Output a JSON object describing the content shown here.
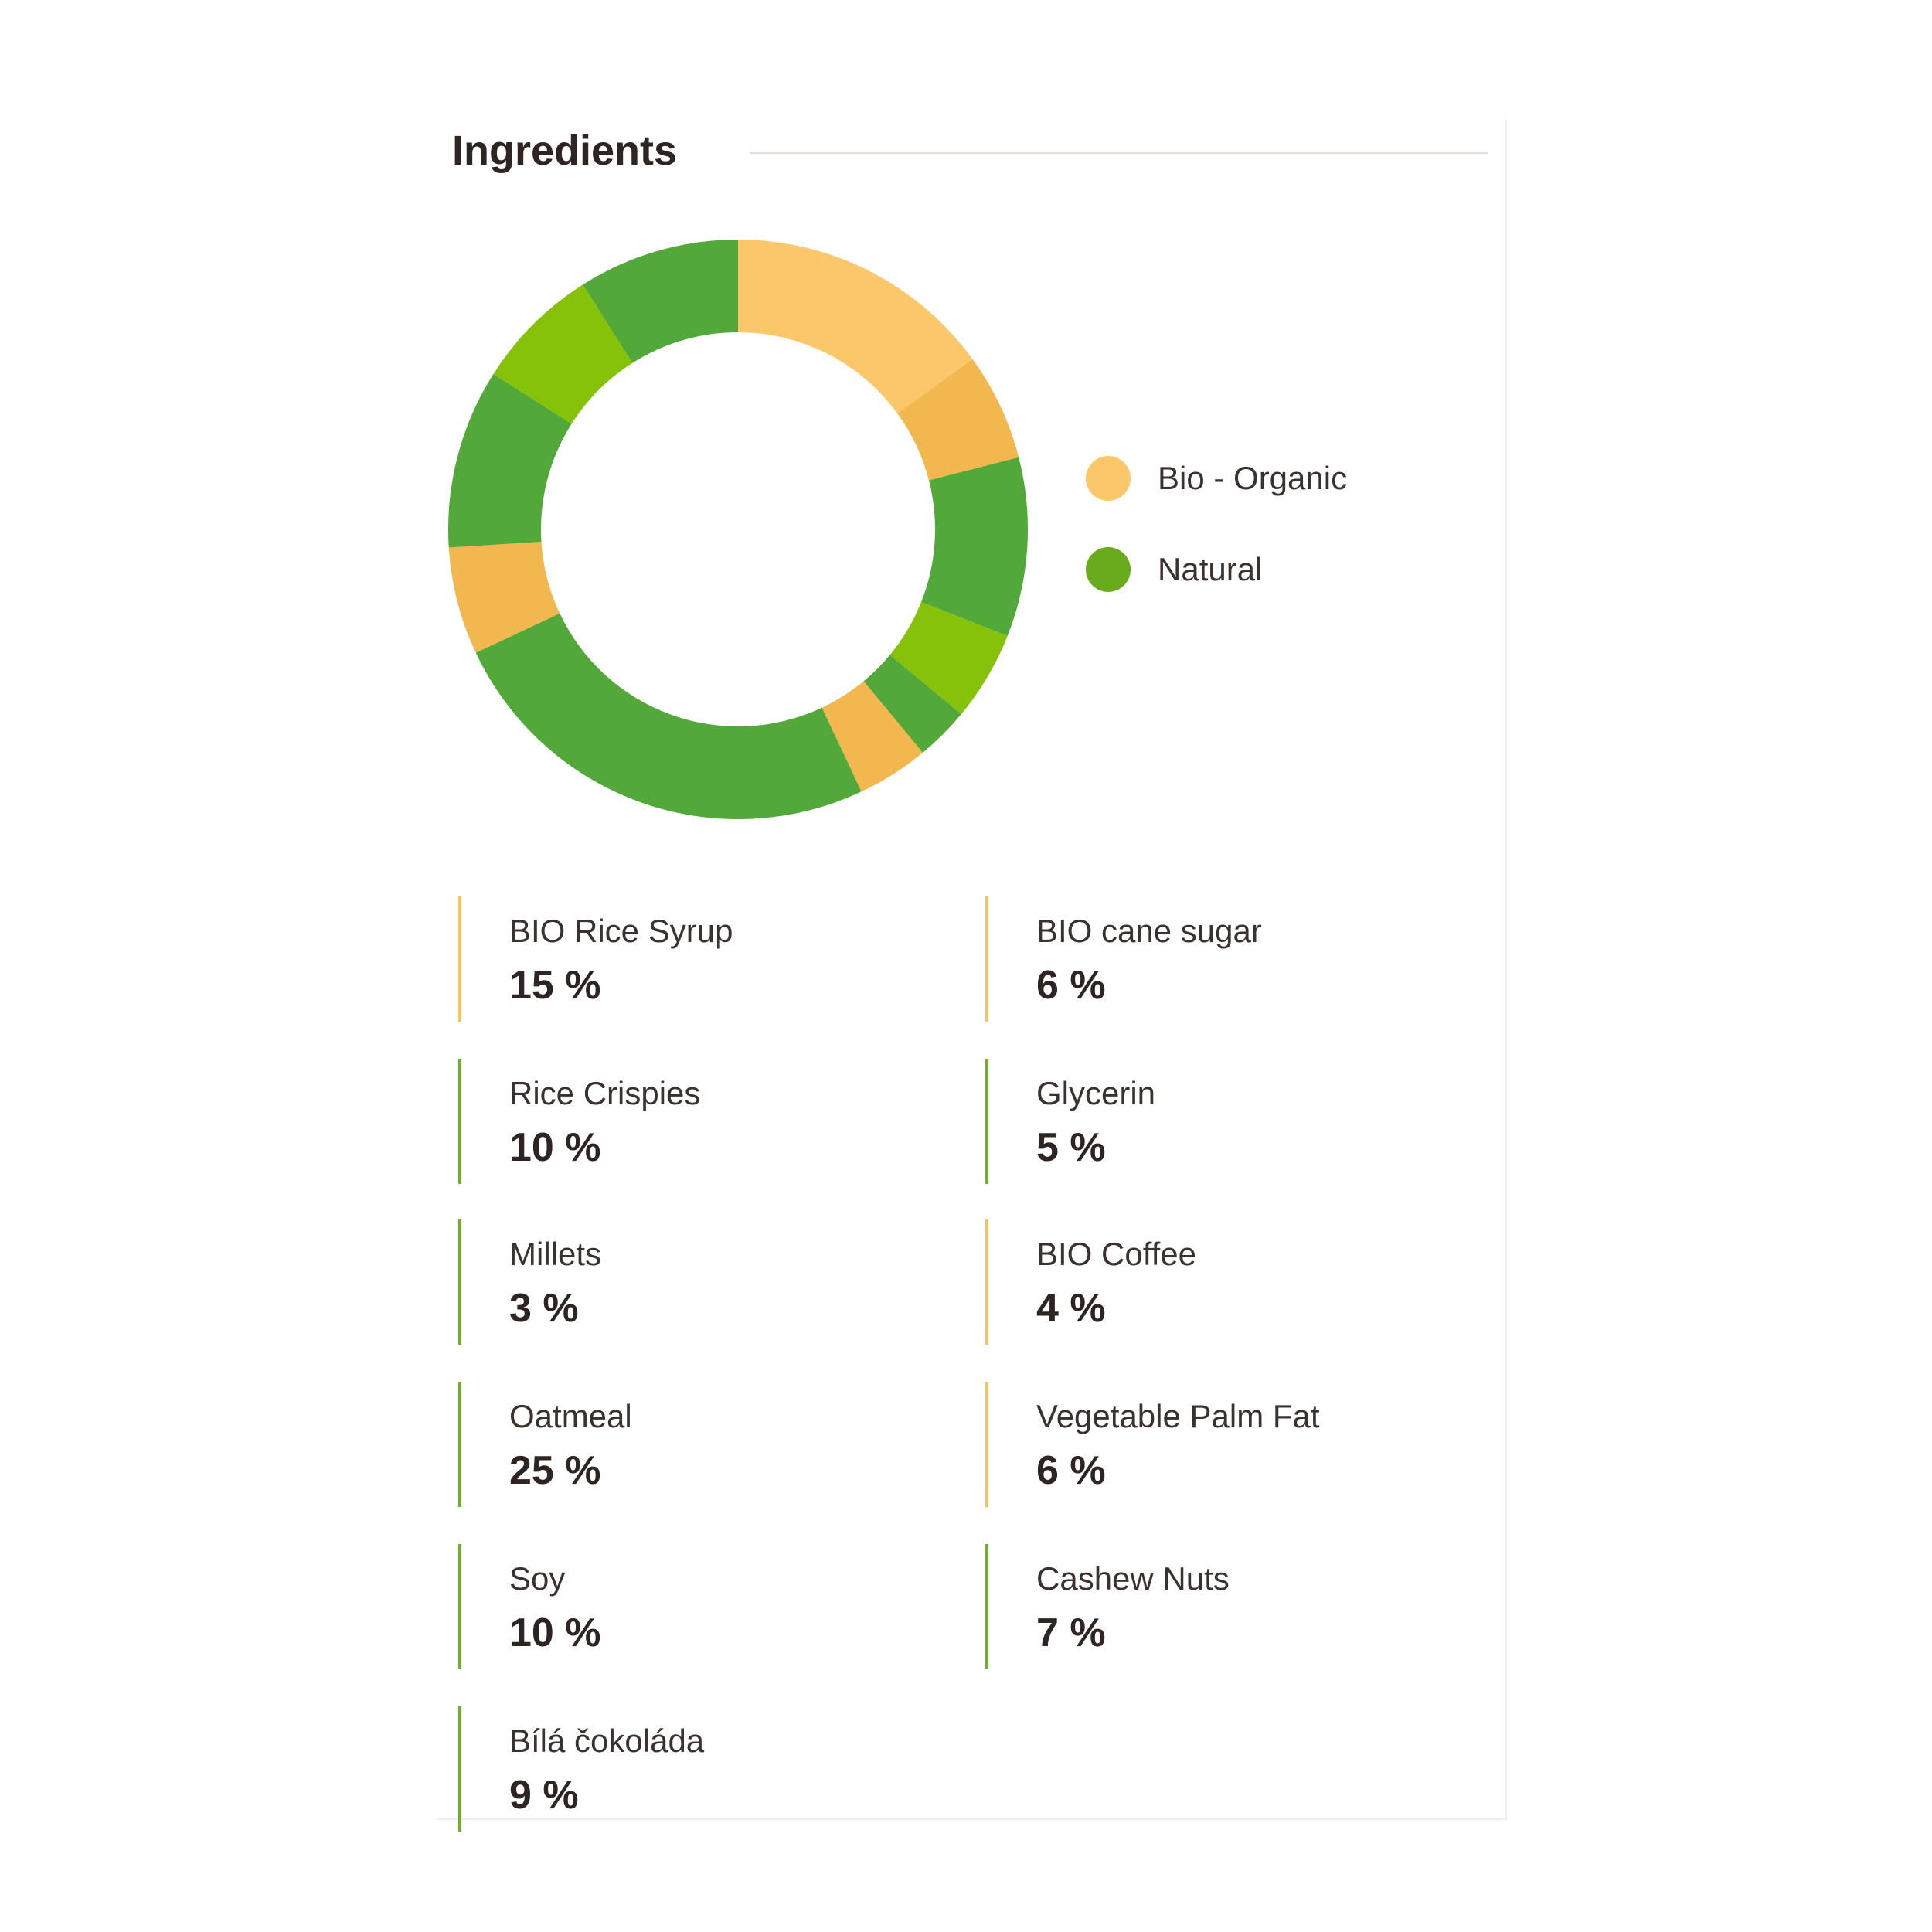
{
  "title": "Ingredients",
  "colors": {
    "organic": "#fcc76a",
    "organic_dark": "#f2b74e",
    "natural": "#52a93a",
    "natural_light": "#86c20a",
    "bar_organic": "#f5c45a",
    "bar_natural": "#6fb02a"
  },
  "legend": [
    {
      "label": "Bio - Organic",
      "color": "#fcc76a"
    },
    {
      "label": "Natural",
      "color": "#6aab1e"
    }
  ],
  "ingredients": [
    {
      "name": "BIO Rice Syrup",
      "percent": "15 %",
      "category": "organic"
    },
    {
      "name": "BIO cane sugar",
      "percent": "6 %",
      "category": "organic"
    },
    {
      "name": "Rice Crispies",
      "percent": "10 %",
      "category": "natural"
    },
    {
      "name": "Glycerin",
      "percent": "5 %",
      "category": "natural"
    },
    {
      "name": "Millets",
      "percent": "3 %",
      "category": "natural"
    },
    {
      "name": "BIO Coffee",
      "percent": "4 %",
      "category": "organic"
    },
    {
      "name": "Oatmeal",
      "percent": "25 %",
      "category": "natural"
    },
    {
      "name": "Vegetable Palm Fat",
      "percent": "6 %",
      "category": "organic"
    },
    {
      "name": "Soy",
      "percent": "10 %",
      "category": "natural"
    },
    {
      "name": "Cashew Nuts",
      "percent": "7 %",
      "category": "natural"
    },
    {
      "name": "Bílá čokoláda",
      "percent": "9 %",
      "category": "natural"
    }
  ],
  "chart_data": {
    "type": "pie",
    "variant": "donut",
    "title": "Ingredients",
    "start": "top, clockwise",
    "legend_placement": "right",
    "slices": [
      {
        "label": "BIO Rice Syrup",
        "value": 15,
        "color": "#fcc76a"
      },
      {
        "label": "BIO cane sugar",
        "value": 6,
        "color": "#f2b74e"
      },
      {
        "label": "Rice Crispies",
        "value": 10,
        "color": "#52a93a"
      },
      {
        "label": "Glycerin",
        "value": 5,
        "color": "#86c20a"
      },
      {
        "label": "Millets",
        "value": 3,
        "color": "#52a93a"
      },
      {
        "label": "BIO Coffee",
        "value": 4,
        "color": "#f2b74e"
      },
      {
        "label": "Oatmeal",
        "value": 25,
        "color": "#52a93a"
      },
      {
        "label": "Vegetable Palm Fat",
        "value": 6,
        "color": "#f2b74e"
      },
      {
        "label": "Soy",
        "value": 10,
        "color": "#52a93a"
      },
      {
        "label": "Cashew Nuts",
        "value": 7,
        "color": "#86c20a"
      },
      {
        "label": "Bílá čokoláda",
        "value": 9,
        "color": "#52a93a"
      }
    ]
  }
}
